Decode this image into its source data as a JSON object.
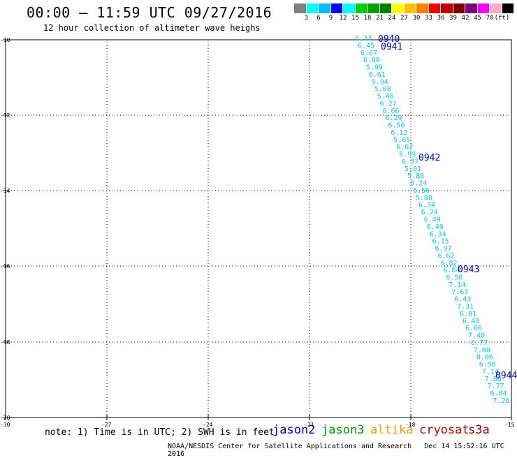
{
  "header": {
    "title": "00:00 – 11:59 UTC 09/27/2016",
    "subtitle": "12 hour collection of altimeter wave heighs"
  },
  "color_scale": {
    "colors": [
      "#808080",
      "#00ffff",
      "#00bfff",
      "#0000ff",
      "#00ffff",
      "#00d000",
      "#00a000",
      "#008000",
      "#ffff00",
      "#ffc000",
      "#ff8000",
      "#ff0000",
      "#c00000",
      "#800000",
      "#800080",
      "#ff00ff",
      "#ffaacc",
      "#000000"
    ],
    "labels": [
      "3",
      "6",
      "9",
      "12",
      "15",
      "18",
      "21",
      "24",
      "27",
      "30",
      "33",
      "36",
      "39",
      "42",
      "45",
      "70",
      "(ft)"
    ]
  },
  "map": {
    "lon_labels": [
      "-30",
      "-27",
      "-24",
      "-21",
      "-18",
      "-15"
    ],
    "lat_labels": [
      "-10",
      "-12",
      "-14",
      "-16",
      "-18",
      "-20"
    ],
    "wave_color": "#00c8e6",
    "time_color": "#0000cc",
    "wave_heights": [
      "6.33",
      "6.45",
      "6.67",
      "6.60",
      "5.99",
      "6.61",
      "5.94",
      "5.08",
      "5.46",
      "6.27",
      "6.66",
      "6.29",
      "6.56",
      "6.12",
      "5.65",
      "6.62",
      "6.99",
      "6.37",
      "5.61",
      "5.88",
      "6.24",
      "6.56",
      "5.80",
      "6.34",
      "6.24",
      "6.49",
      "6.40",
      "6.34",
      "6.15",
      "6.97",
      "6.62",
      "6.82",
      "6.84",
      "6.50",
      "7.14",
      "7.67",
      "6.43",
      "7.31",
      "6.81",
      "6.43",
      "6.66",
      "7.40",
      "6.77",
      "7.60",
      "8.06",
      "6.98",
      "7.14",
      "7.88",
      "7.77",
      "6.84",
      "7.26"
    ],
    "times": [
      "0940",
      "0941",
      "0942",
      "0943",
      "0944"
    ]
  },
  "footer": {
    "note": "note: 1) Time is in UTC; 2) SWH is in feet",
    "satellites": [
      {
        "name": "jason2",
        "color": "#0000cc"
      },
      {
        "name": "jason3",
        "color": "#009900"
      },
      {
        "name": "altika",
        "color": "#ff9900"
      },
      {
        "name": "cryosat",
        "color": "#cc0000"
      },
      {
        "name": "s3a",
        "color": "#990000"
      }
    ],
    "credit": "NOAA/NESDIS Center for Satellite Applications and Research",
    "timestamp": "Dec 14 15:52:16 UTC 2016"
  }
}
